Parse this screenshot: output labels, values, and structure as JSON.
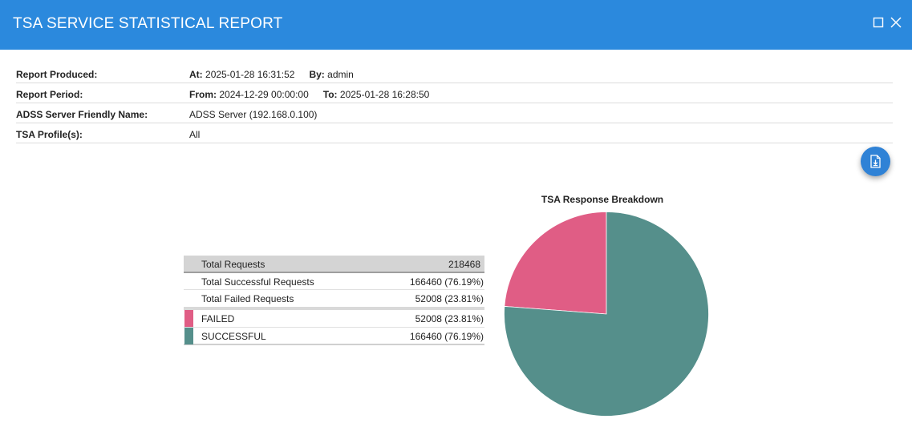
{
  "window": {
    "title": "TSA SERVICE STATISTICAL REPORT",
    "maximize_icon": "maximize-icon",
    "close_icon": "close-icon"
  },
  "info": {
    "produced": {
      "label": "Report Produced:",
      "at_label": "At:",
      "at_value": "2025-01-28 16:31:52",
      "by_label": "By:",
      "by_value": "admin"
    },
    "period": {
      "label": "Report Period:",
      "from_label": "From:",
      "from_value": "2024-12-29 00:00:00",
      "to_label": "To:",
      "to_value": "2025-01-28 16:28:50"
    },
    "server": {
      "label": "ADSS Server Friendly Name:",
      "value": "ADSS Server (192.168.0.100)"
    },
    "profiles": {
      "label": "TSA Profile(s):",
      "value": "All"
    }
  },
  "download_icon": "download-document-icon",
  "stats": {
    "total": {
      "label": "Total Requests",
      "value": "218468"
    },
    "successful": {
      "label": "Total Successful Requests",
      "value": "166460 (76.19%)"
    },
    "failed": {
      "label": "Total Failed Requests",
      "value": "52008 (23.81%)"
    },
    "legend": [
      {
        "label": "FAILED",
        "value": "52008 (23.81%)",
        "color": "#e05d85"
      },
      {
        "label": "SUCCESSFUL",
        "value": "166460 (76.19%)",
        "color": "#558f8b"
      }
    ]
  },
  "chart_data": {
    "type": "pie",
    "title": "TSA Response Breakdown",
    "categories": [
      "FAILED",
      "SUCCESSFUL"
    ],
    "values": [
      52008,
      166460
    ],
    "colors": [
      "#e05d85",
      "#558f8b"
    ]
  }
}
